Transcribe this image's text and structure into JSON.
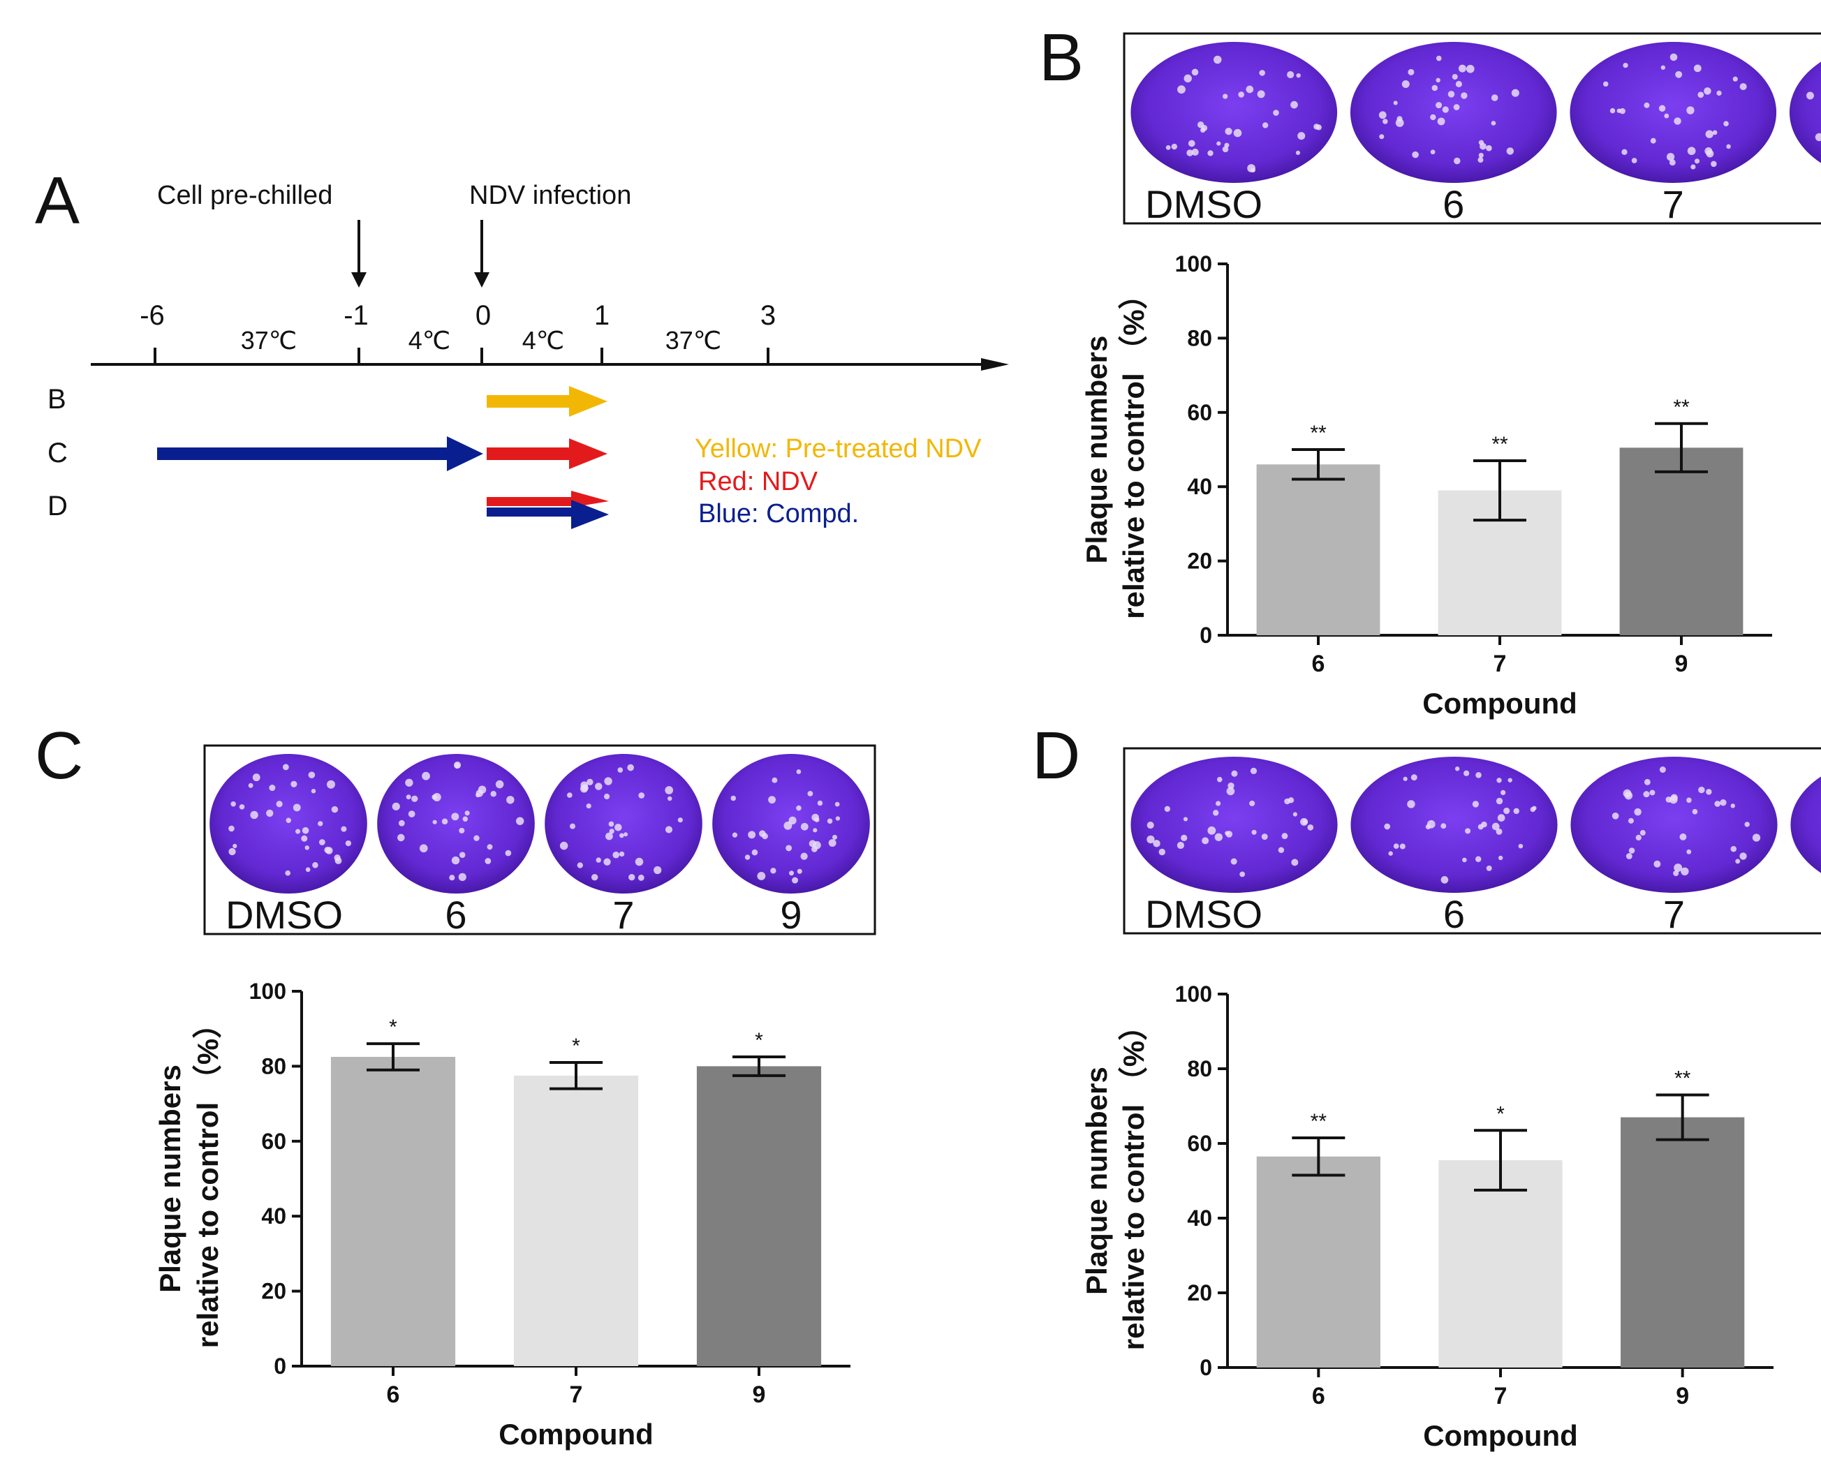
{
  "panels": {
    "a_letter": "A",
    "b_letter": "B",
    "c_letter": "C",
    "d_letter": "D"
  },
  "timeline": {
    "event_prechill": "Cell pre-chilled",
    "event_infection": "NDV infection",
    "ticks": [
      "-6",
      "-1",
      "0",
      "1",
      "3"
    ],
    "temps": [
      "37℃",
      "4℃",
      "4℃",
      "37℃"
    ],
    "rows": [
      "B",
      "C",
      "D"
    ],
    "legend": {
      "yellow": "Yellow: Pre-treated NDV",
      "red": "Red: NDV",
      "blue": "Blue: Compd."
    },
    "colors": {
      "yellow": "#f2b705",
      "red": "#e31a1c",
      "blue": "#0a1f8f",
      "axis": "#111111"
    }
  },
  "plates": {
    "labels": [
      "DMSO",
      "6",
      "7",
      "9"
    ],
    "colors": {
      "stain": "#6a2bd9",
      "stain_dark": "#4a18b0",
      "plaque": "#e9ddf7"
    }
  },
  "bar_colors": [
    "#b5b5b5",
    "#e2e2e2",
    "#7f7f7f"
  ],
  "chart_data": [
    {
      "panel": "B",
      "type": "bar",
      "categories": [
        "6",
        "7",
        "9"
      ],
      "values": [
        46,
        39,
        50.5
      ],
      "errors": [
        4,
        8,
        6.5
      ],
      "significance": [
        "**",
        "**",
        "**"
      ],
      "xlabel": "Compound",
      "ylabel_line1": "Plaque numbers",
      "ylabel_line2": "relative to control （%）",
      "ylim": [
        0,
        100
      ],
      "yticks": [
        "0",
        "20",
        "40",
        "60",
        "80",
        "100"
      ]
    },
    {
      "panel": "C",
      "type": "bar",
      "categories": [
        "6",
        "7",
        "9"
      ],
      "values": [
        82.5,
        77.5,
        80
      ],
      "errors": [
        3.5,
        3.5,
        2.5
      ],
      "significance": [
        "*",
        "*",
        "*"
      ],
      "xlabel": "Compound",
      "ylabel_line1": "Plaque numbers",
      "ylabel_line2": "relative to control （%）",
      "ylim": [
        0,
        100
      ],
      "yticks": [
        "0",
        "20",
        "40",
        "60",
        "80",
        "100"
      ]
    },
    {
      "panel": "D",
      "type": "bar",
      "categories": [
        "6",
        "7",
        "9"
      ],
      "values": [
        56.5,
        55.5,
        67
      ],
      "errors": [
        5,
        8,
        6
      ],
      "significance": [
        "**",
        "*",
        "**"
      ],
      "xlabel": "Compound",
      "ylabel_line1": "Plaque numbers",
      "ylabel_line2": "relative to control （%）",
      "ylim": [
        0,
        100
      ],
      "yticks": [
        "0",
        "20",
        "40",
        "60",
        "80",
        "100"
      ]
    }
  ]
}
